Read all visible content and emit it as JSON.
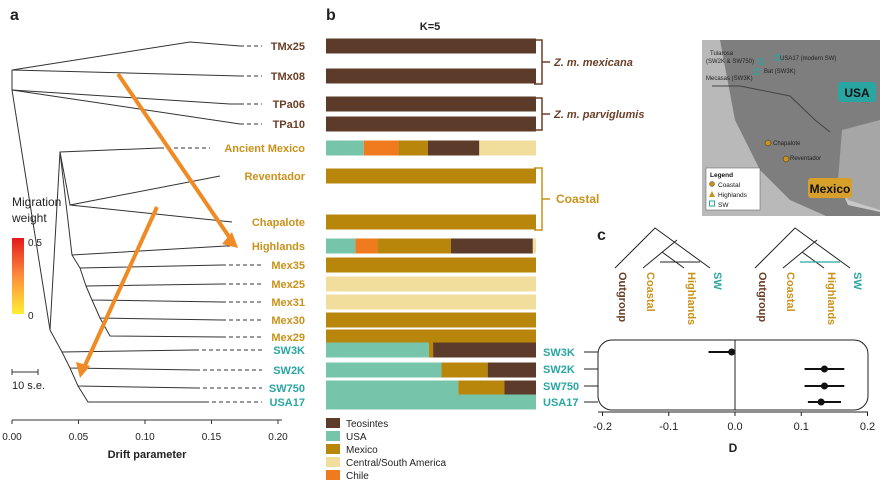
{
  "panels": {
    "a": "a",
    "b": "b",
    "c": "c"
  },
  "colors": {
    "teosinte": "#5c3b2a",
    "usa": "#76c5ab",
    "mexico": "#b8860b",
    "csa": "#f1de9d",
    "chile": "#f07b1f",
    "sw_text": "#2aa6a2",
    "mex_text": "#c9921a",
    "teo_text": "#6a3f27",
    "arrow": "#f08a24"
  },
  "panel_a": {
    "migration_title_1": "Migration",
    "migration_title_2": "weight",
    "scale_max": "0.5",
    "scale_min": "0",
    "scalebar_label": "10 s.e.",
    "xlabel": "Drift parameter",
    "xticks": [
      "0.00",
      "0.05",
      "0.10",
      "0.15",
      "0.20"
    ],
    "leaves": [
      {
        "label": "TMx25",
        "group": "teo"
      },
      {
        "label": "TMx08",
        "group": "teo"
      },
      {
        "label": "TPa06",
        "group": "teo"
      },
      {
        "label": "TPa10",
        "group": "teo"
      },
      {
        "label": "Ancient Mexico",
        "group": "mex"
      },
      {
        "label": "Reventador",
        "group": "mex"
      },
      {
        "label": "Chapalote",
        "group": "mex"
      },
      {
        "label": "Highlands",
        "group": "mex"
      },
      {
        "label": "Mex35",
        "group": "mex"
      },
      {
        "label": "Mex25",
        "group": "mex"
      },
      {
        "label": "Mex31",
        "group": "mex"
      },
      {
        "label": "Mex30",
        "group": "mex"
      },
      {
        "label": "Mex29",
        "group": "mex"
      },
      {
        "label": "SW3K",
        "group": "sw"
      },
      {
        "label": "SW2K",
        "group": "sw"
      },
      {
        "label": "SW750",
        "group": "sw"
      },
      {
        "label": "USA17",
        "group": "sw"
      }
    ]
  },
  "panel_b": {
    "k_label": "K=5",
    "bracket_labels": {
      "mexicana": "Z. m. mexicana",
      "parviglumis": "Z. m. parviglumis",
      "coastal": "Coastal"
    },
    "sw_labels": [
      "SW3K",
      "SW2K",
      "SW750",
      "USA17"
    ],
    "legend": [
      {
        "key": "teosinte",
        "label": "Teosintes"
      },
      {
        "key": "usa",
        "label": "USA"
      },
      {
        "key": "mexico",
        "label": "Mexico"
      },
      {
        "key": "csa",
        "label": "Central/South America"
      },
      {
        "key": "chile",
        "label": "Chile"
      }
    ],
    "rows": [
      {
        "name": "TMx25",
        "fractions": {
          "teosinte": 1.0
        }
      },
      {
        "name": "TMx08",
        "fractions": {
          "teosinte": 1.0
        }
      },
      {
        "name": "TPa06",
        "fractions": {
          "teosinte": 1.0
        }
      },
      {
        "name": "TPa10",
        "fractions": {
          "teosinte": 1.0
        }
      },
      {
        "name": "Ancient Mexico",
        "fractions": {
          "usa": 0.18,
          "chile": 0.165,
          "mexico": 0.14,
          "teosinte": 0.245,
          "csa": 0.27
        }
      },
      {
        "name": "Reventador",
        "fractions": {
          "mexico": 1.0
        }
      },
      {
        "name": "Chapalote",
        "fractions": {
          "mexico": 1.0
        }
      },
      {
        "name": "Highlands",
        "fractions": {
          "usa": 0.14,
          "chile": 0.105,
          "mexico": 0.35,
          "teosinte": 0.39,
          "csa": 0.015
        }
      },
      {
        "name": "Mex35",
        "fractions": {
          "mexico": 1.0
        }
      },
      {
        "name": "Mex25",
        "fractions": {
          "csa": 1.0
        }
      },
      {
        "name": "Mex31",
        "fractions": {
          "csa": 1.0
        }
      },
      {
        "name": "Mex30",
        "fractions": {
          "mexico": 1.0
        }
      },
      {
        "name": "Mex29",
        "fractions": {
          "mexico": 1.0
        }
      },
      {
        "name": "SW3K",
        "fractions": {
          "usa": 0.49,
          "mexico": 0.02,
          "teosinte": 0.49
        }
      },
      {
        "name": "SW2K",
        "fractions": {
          "usa": 0.55,
          "mexico": 0.22,
          "teosinte": 0.23
        }
      },
      {
        "name": "SW750",
        "fractions": {
          "usa": 0.63,
          "mexico": 0.22,
          "teosinte": 0.15
        }
      },
      {
        "name": "USA17",
        "fractions": {
          "usa": 1.0
        }
      }
    ]
  },
  "map": {
    "labels": [
      "Tularosa",
      "(SW2K & SW750)",
      "USA17 (modern SW)",
      "Mecasas (SW3K)",
      "Bat (SW3K)",
      "Chapalote",
      "Reventador",
      "USA",
      "Mexico"
    ],
    "legend_title": "Legend",
    "legend_items": [
      "Coastal",
      "Highlands",
      "SW"
    ]
  },
  "panel_c": {
    "tree_labels": [
      "Outgroup",
      "Coastal",
      "Highlands",
      "SW"
    ],
    "xlabel": "D",
    "xticks": [
      "-0.2",
      "-0.1",
      "0.0",
      "0.1",
      "0.2"
    ],
    "chart_data": {
      "type": "scatter",
      "xlabel": "D",
      "xlim": [
        -0.2,
        0.2
      ],
      "categories": [
        "SW3K",
        "SW2K",
        "SW750",
        "USA17"
      ],
      "series": [
        {
          "values": [
            -0.005,
            null,
            null,
            null
          ],
          "ci": [
            [
              -0.04,
              0.0
            ]
          ]
        },
        {
          "values": [
            null,
            0.135,
            0.135,
            0.13
          ],
          "ci": [
            [
              null,
              null
            ],
            [
              0.105,
              0.165
            ],
            [
              0.105,
              0.165
            ],
            [
              0.11,
              0.16
            ]
          ]
        }
      ]
    }
  }
}
